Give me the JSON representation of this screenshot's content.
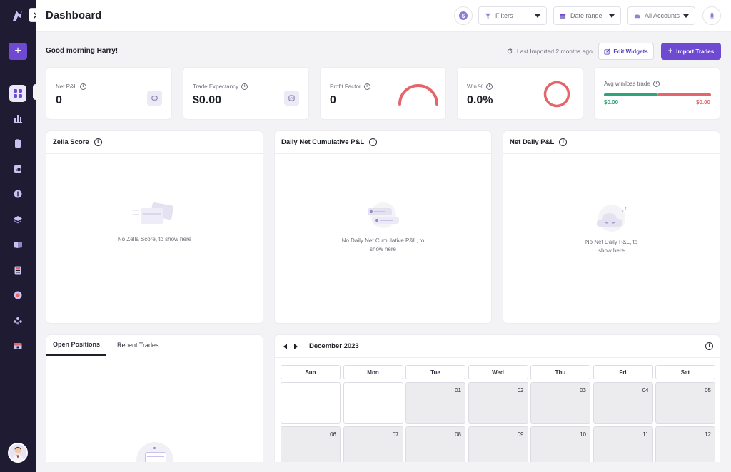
{
  "header": {
    "title": "Dashboard",
    "filters_label": "Filters",
    "date_range_label": "Date range",
    "accounts_label": "All Accounts"
  },
  "greeting": "Good morning Harry!",
  "last_imported": "Last Imported 2 months ago",
  "actions": {
    "edit_widgets": "Edit Widgets",
    "import_trades": "Import Trades"
  },
  "stats": {
    "net_pnl": {
      "label": "Net P&L",
      "value": "0"
    },
    "trade_expectancy": {
      "label": "Trade Expectancy",
      "value": "$0.00"
    },
    "profit_factor": {
      "label": "Profit Factor",
      "value": "0"
    },
    "win_pct": {
      "label": "Win %",
      "value": "0.0%"
    },
    "avg_win_loss": {
      "label": "Avg win/loss trade",
      "win": "$0.00",
      "loss": "$0.00"
    }
  },
  "panels": {
    "zella": {
      "title": "Zella Score",
      "empty": "No Zella Score, to show here"
    },
    "cumulative": {
      "title": "Daily Net Cumulative P&L",
      "empty": "No Daily Net Cumulative P&L, to show here"
    },
    "net_daily": {
      "title": "Net Daily P&L",
      "empty": "No Net Daily P&L, to show here"
    }
  },
  "tabs": [
    "Open Positions",
    "Recent Trades"
  ],
  "calendar": {
    "month": "December 2023",
    "weekdays": [
      "Sun",
      "Mon",
      "Tue",
      "Wed",
      "Thu",
      "Fri",
      "Sat"
    ],
    "days": [
      "",
      "",
      "01",
      "02",
      "03",
      "04",
      "05",
      "06",
      "07",
      "08",
      "09",
      "10",
      "11",
      "12"
    ]
  },
  "colors": {
    "accent": "#6e4ad3",
    "sidebar": "#1e1b33",
    "win": "#2fa37a",
    "loss": "#e5656a"
  },
  "icons": {
    "logo": "zella-logo-icon",
    "sidebar": [
      "dashboard-icon",
      "reports-icon",
      "journal-icon",
      "chart-icon",
      "alert-icon",
      "playbook-icon",
      "notebook-icon",
      "calculator-icon",
      "record-icon",
      "community-icon",
      "university-icon"
    ]
  }
}
